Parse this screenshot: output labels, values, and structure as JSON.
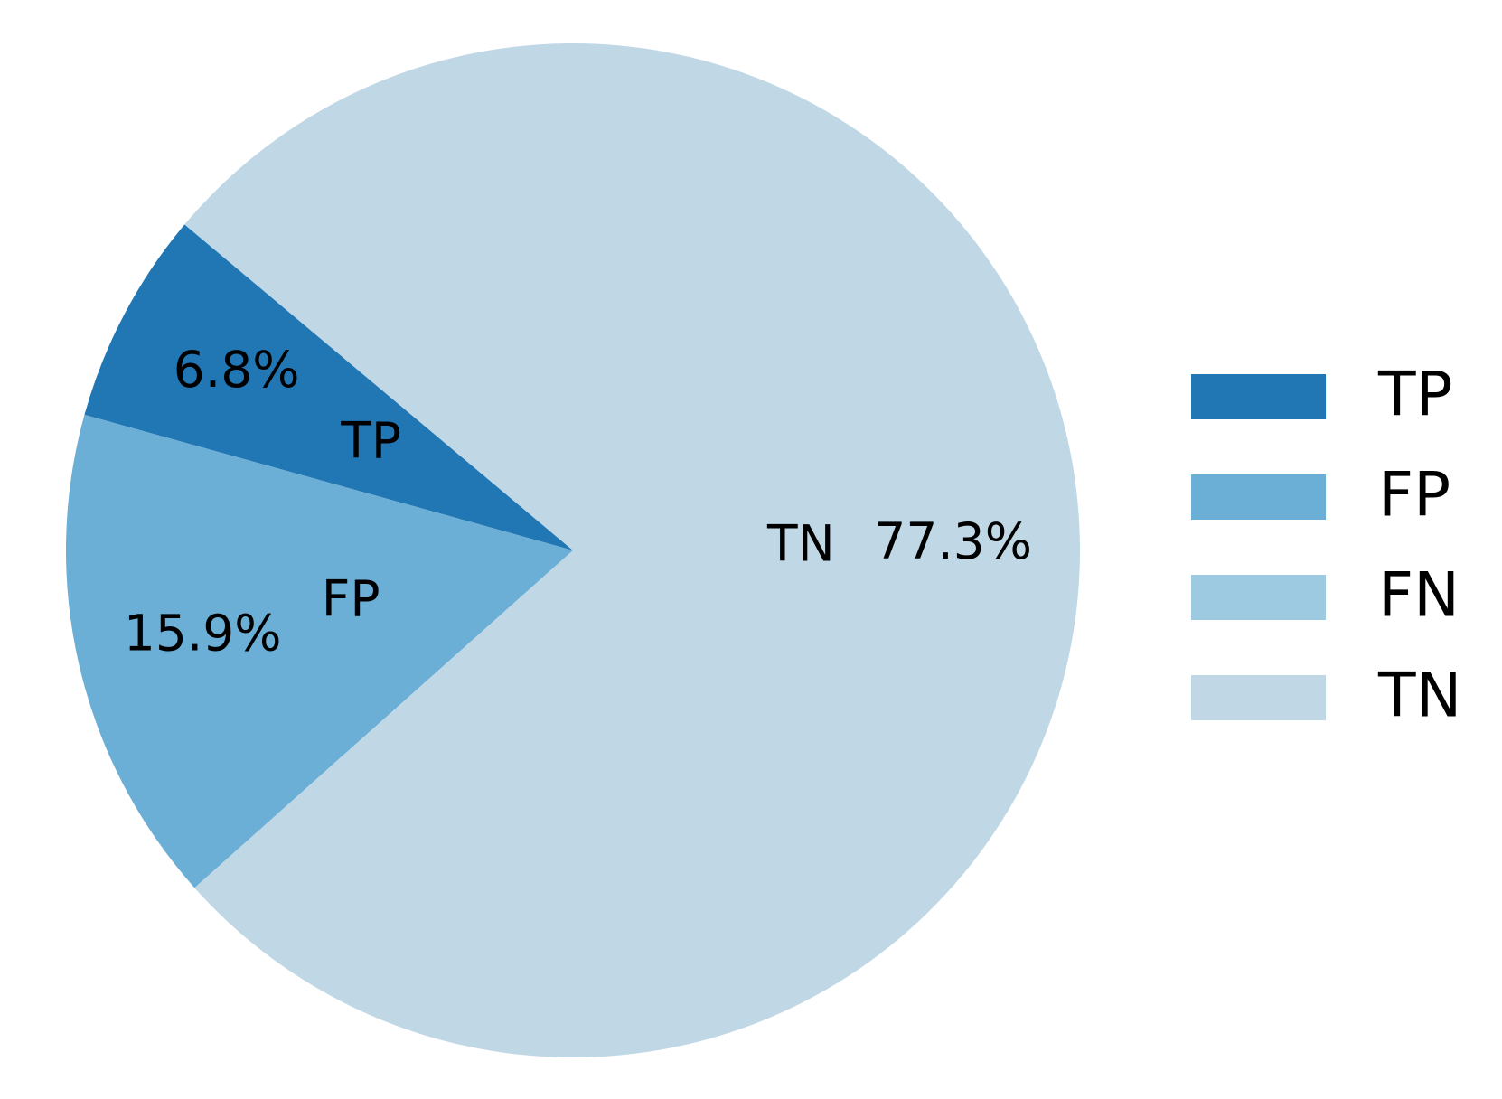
{
  "chart_data": {
    "type": "pie",
    "categories": [
      "TP",
      "FP",
      "FN",
      "TN"
    ],
    "values": [
      6.8,
      15.9,
      0,
      77.3
    ],
    "value_labels": [
      "6.8%",
      "15.9%",
      null,
      "77.3%"
    ],
    "colors": [
      "#2077b4",
      "#6baed6",
      "#9ecae1",
      "#c0d7e6"
    ],
    "legend": "right"
  }
}
